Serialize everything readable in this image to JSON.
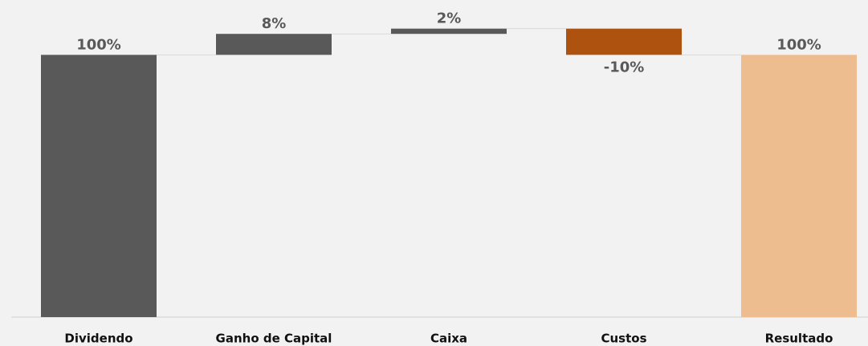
{
  "chart_data": {
    "type": "waterfall",
    "categories": [
      "Dividendo",
      "Ganho de Capital",
      "Caixa",
      "Custos",
      "Resultado"
    ],
    "values": [
      100,
      8,
      2,
      -10,
      100
    ],
    "value_labels": [
      "100%",
      "8%",
      "2%",
      "-10%",
      "100%"
    ],
    "is_total": [
      true,
      false,
      false,
      false,
      true
    ],
    "colors": [
      "#595959",
      "#595959",
      "#595959",
      "#ae5210",
      "#edbc8f"
    ],
    "ylim": [
      0,
      120
    ]
  }
}
